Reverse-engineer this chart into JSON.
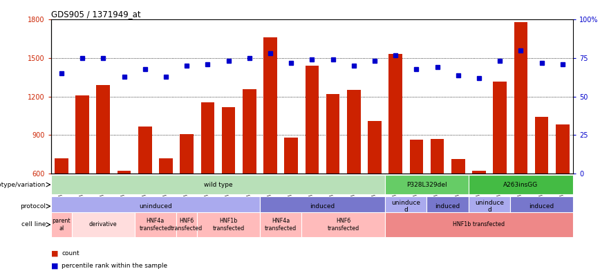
{
  "title": "GDS905 / 1371949_at",
  "samples": [
    "GSM27203",
    "GSM27204",
    "GSM27205",
    "GSM27206",
    "GSM27207",
    "GSM27150",
    "GSM27152",
    "GSM27156",
    "GSM27159",
    "GSM27063",
    "GSM27148",
    "GSM27151",
    "GSM27153",
    "GSM27157",
    "GSM27160",
    "GSM27147",
    "GSM27149",
    "GSM27161",
    "GSM27165",
    "GSM27163",
    "GSM27167",
    "GSM27169",
    "GSM27171",
    "GSM27170",
    "GSM27172"
  ],
  "counts": [
    720,
    1210,
    1290,
    620,
    965,
    720,
    910,
    1155,
    1120,
    1260,
    1660,
    880,
    1440,
    1220,
    1250,
    1010,
    1530,
    865,
    870,
    715,
    620,
    1315,
    1780,
    1040,
    985
  ],
  "percentiles": [
    65,
    75,
    75,
    63,
    68,
    63,
    70,
    71,
    73,
    75,
    78,
    72,
    74,
    74,
    70,
    73,
    77,
    68,
    69,
    64,
    62,
    73,
    80,
    72,
    71
  ],
  "bar_color": "#cc2200",
  "dot_color": "#0000cc",
  "ylim_left": [
    600,
    1800
  ],
  "ylim_right": [
    0,
    100
  ],
  "yticks_left": [
    600,
    900,
    1200,
    1500,
    1800
  ],
  "yticks_right": [
    0,
    25,
    50,
    75,
    100
  ],
  "grid_values": [
    900,
    1200,
    1500
  ],
  "annotation_rows": {
    "genotype": {
      "label": "genotype/variation",
      "segments": [
        {
          "text": "wild type",
          "start": 0,
          "end": 16,
          "color": "#b8e0b8"
        },
        {
          "text": "P328L329del",
          "start": 16,
          "end": 20,
          "color": "#66cc66"
        },
        {
          "text": "A263insGG",
          "start": 20,
          "end": 25,
          "color": "#44bb44"
        }
      ]
    },
    "protocol": {
      "label": "protocol",
      "segments": [
        {
          "text": "uninduced",
          "start": 0,
          "end": 10,
          "color": "#aaaaee"
        },
        {
          "text": "induced",
          "start": 10,
          "end": 16,
          "color": "#7777cc"
        },
        {
          "text": "uninduce\nd",
          "start": 16,
          "end": 18,
          "color": "#aaaaee"
        },
        {
          "text": "induced",
          "start": 18,
          "end": 20,
          "color": "#7777cc"
        },
        {
          "text": "uninduce\nd",
          "start": 20,
          "end": 22,
          "color": "#aaaaee"
        },
        {
          "text": "induced",
          "start": 22,
          "end": 25,
          "color": "#7777cc"
        }
      ]
    },
    "cell_line": {
      "label": "cell line",
      "segments": [
        {
          "text": "parent\nal",
          "start": 0,
          "end": 1,
          "color": "#ffbbbb"
        },
        {
          "text": "derivative",
          "start": 1,
          "end": 4,
          "color": "#ffdddd"
        },
        {
          "text": "HNF4a\ntransfected",
          "start": 4,
          "end": 6,
          "color": "#ffbbbb"
        },
        {
          "text": "HNF6\ntransfected",
          "start": 6,
          "end": 7,
          "color": "#ffbbbb"
        },
        {
          "text": "HNF1b\ntransfected",
          "start": 7,
          "end": 10,
          "color": "#ffbbbb"
        },
        {
          "text": "HNF4a\ntransfected",
          "start": 10,
          "end": 12,
          "color": "#ffbbbb"
        },
        {
          "text": "HNF6\ntransfected",
          "start": 12,
          "end": 16,
          "color": "#ffbbbb"
        },
        {
          "text": "HNF1b transfected",
          "start": 16,
          "end": 25,
          "color": "#ee8888"
        }
      ]
    }
  },
  "legend": [
    {
      "color": "#cc2200",
      "label": "count"
    },
    {
      "color": "#0000cc",
      "label": "percentile rank within the sample"
    }
  ]
}
